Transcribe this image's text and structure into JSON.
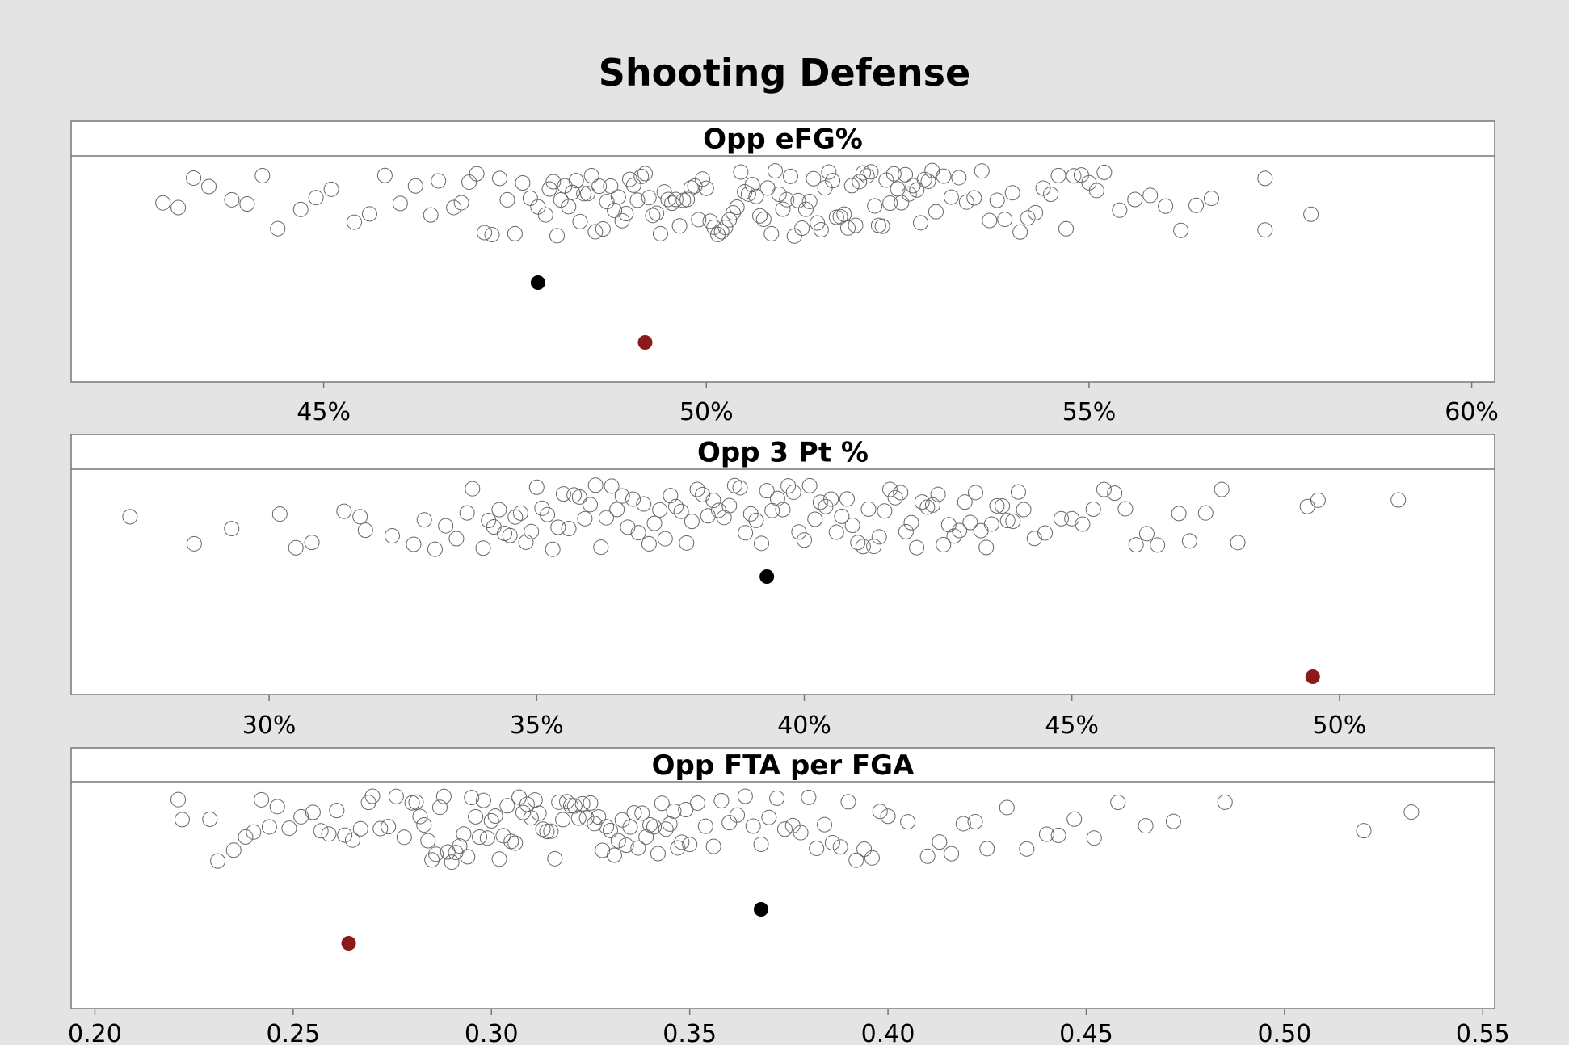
{
  "chart_data": {
    "type": "scatter",
    "title": "Shooting Defense",
    "colors": {
      "background": "#e4e4e4",
      "plot_background": "#ffffff",
      "point_outline": "#666666",
      "highlight_black": "#000000",
      "highlight_red": "#8b1a1a"
    },
    "panels": [
      {
        "title": "Opp eFG%",
        "tick_labels": [
          "45%",
          "50%",
          "55%",
          "60%"
        ],
        "ticks": [
          45,
          50,
          55,
          60
        ],
        "xlim": [
          41.7,
          60.3
        ],
        "highlight_black": 47.8,
        "highlight_red": 49.2,
        "values": [
          42.9,
          43.1,
          43.3,
          43.5,
          43.8,
          44.0,
          44.2,
          44.4,
          44.7,
          44.9,
          45.1,
          45.4,
          45.6,
          45.8,
          46.0,
          46.2,
          46.4,
          46.5,
          46.7,
          46.8,
          46.9,
          47.0,
          47.1,
          47.2,
          47.3,
          47.4,
          47.5,
          47.6,
          47.7,
          47.8,
          47.9,
          47.95,
          48.0,
          48.05,
          48.1,
          48.15,
          48.2,
          48.25,
          48.3,
          48.35,
          48.4,
          48.45,
          48.5,
          48.55,
          48.6,
          48.65,
          48.7,
          48.75,
          48.8,
          48.85,
          48.9,
          48.95,
          49.0,
          49.05,
          49.1,
          49.15,
          49.2,
          49.25,
          49.3,
          49.35,
          49.4,
          49.45,
          49.5,
          49.55,
          49.6,
          49.65,
          49.7,
          49.75,
          49.8,
          49.85,
          49.9,
          49.95,
          50.0,
          50.05,
          50.1,
          50.15,
          50.2,
          50.25,
          50.3,
          50.35,
          50.4,
          50.45,
          50.5,
          50.55,
          50.6,
          50.65,
          50.7,
          50.75,
          50.8,
          50.85,
          50.9,
          50.95,
          51.0,
          51.05,
          51.1,
          51.15,
          51.2,
          51.25,
          51.3,
          51.35,
          51.4,
          51.45,
          51.5,
          51.55,
          51.6,
          51.65,
          51.7,
          51.75,
          51.8,
          51.85,
          51.9,
          51.95,
          52.0,
          52.05,
          52.1,
          52.15,
          52.2,
          52.25,
          52.3,
          52.35,
          52.4,
          52.45,
          52.5,
          52.55,
          52.6,
          52.65,
          52.7,
          52.75,
          52.8,
          52.85,
          52.9,
          52.95,
          53.0,
          53.1,
          53.2,
          53.3,
          53.4,
          53.5,
          53.6,
          53.7,
          53.8,
          53.9,
          54.0,
          54.1,
          54.2,
          54.3,
          54.4,
          54.5,
          54.6,
          54.7,
          54.8,
          54.9,
          55.0,
          55.1,
          55.2,
          55.4,
          55.6,
          55.8,
          56.0,
          56.2,
          56.4,
          56.6,
          57.3,
          57.3,
          57.9
        ]
      },
      {
        "title": "Opp 3 Pt %",
        "tick_labels": [
          "30%",
          "35%",
          "40%",
          "45%",
          "50%"
        ],
        "ticks": [
          30,
          35,
          40,
          45,
          50
        ],
        "xlim": [
          26.3,
          52.9
        ],
        "highlight_black": 39.3,
        "highlight_red": 49.5,
        "values": [
          27.4,
          28.6,
          29.3,
          30.2,
          30.5,
          30.8,
          31.4,
          31.7,
          31.8,
          32.3,
          32.7,
          32.9,
          33.1,
          33.3,
          33.5,
          33.7,
          33.8,
          34.0,
          34.1,
          34.2,
          34.3,
          34.4,
          34.5,
          34.6,
          34.7,
          34.8,
          34.9,
          35.0,
          35.1,
          35.2,
          35.3,
          35.4,
          35.5,
          35.6,
          35.7,
          35.8,
          35.9,
          36.0,
          36.1,
          36.2,
          36.3,
          36.4,
          36.5,
          36.6,
          36.7,
          36.8,
          36.9,
          37.0,
          37.1,
          37.2,
          37.3,
          37.4,
          37.5,
          37.6,
          37.7,
          37.8,
          37.9,
          38.0,
          38.1,
          38.2,
          38.3,
          38.4,
          38.5,
          38.6,
          38.7,
          38.8,
          38.9,
          39.0,
          39.1,
          39.2,
          39.3,
          39.4,
          39.5,
          39.6,
          39.7,
          39.8,
          39.9,
          40.0,
          40.1,
          40.2,
          40.3,
          40.4,
          40.5,
          40.6,
          40.7,
          40.8,
          40.9,
          41.0,
          41.1,
          41.2,
          41.3,
          41.4,
          41.5,
          41.6,
          41.7,
          41.8,
          41.9,
          42.0,
          42.1,
          42.2,
          42.3,
          42.4,
          42.5,
          42.6,
          42.7,
          42.8,
          42.9,
          43.0,
          43.1,
          43.2,
          43.3,
          43.4,
          43.5,
          43.6,
          43.7,
          43.8,
          43.9,
          44.0,
          44.1,
          44.3,
          44.5,
          44.8,
          45.0,
          45.2,
          45.4,
          45.6,
          45.8,
          46.0,
          46.2,
          46.4,
          46.6,
          47.0,
          47.2,
          47.5,
          47.8,
          48.1,
          49.4,
          49.6,
          51.1
        ]
      },
      {
        "title": "Opp FTA per FGA",
        "tick_labels": [
          "0.20",
          "0.25",
          "0.30",
          "0.35",
          "0.40",
          "0.45",
          "0.50",
          "0.55"
        ],
        "ticks": [
          0.2,
          0.25,
          0.3,
          0.35,
          0.4,
          0.45,
          0.5,
          0.55
        ],
        "xlim": [
          0.194,
          0.553
        ],
        "highlight_black": 0.368,
        "highlight_red": 0.264,
        "values": [
          0.221,
          0.222,
          0.229,
          0.231,
          0.235,
          0.238,
          0.24,
          0.242,
          0.244,
          0.246,
          0.249,
          0.252,
          0.255,
          0.257,
          0.259,
          0.261,
          0.263,
          0.265,
          0.267,
          0.269,
          0.27,
          0.272,
          0.274,
          0.276,
          0.278,
          0.28,
          0.281,
          0.282,
          0.283,
          0.284,
          0.285,
          0.286,
          0.287,
          0.288,
          0.289,
          0.29,
          0.291,
          0.292,
          0.293,
          0.294,
          0.295,
          0.296,
          0.297,
          0.298,
          0.299,
          0.3,
          0.301,
          0.302,
          0.303,
          0.304,
          0.305,
          0.306,
          0.307,
          0.308,
          0.309,
          0.31,
          0.311,
          0.312,
          0.313,
          0.314,
          0.315,
          0.316,
          0.317,
          0.318,
          0.319,
          0.32,
          0.321,
          0.322,
          0.323,
          0.324,
          0.325,
          0.326,
          0.327,
          0.328,
          0.329,
          0.33,
          0.331,
          0.332,
          0.333,
          0.334,
          0.335,
          0.336,
          0.337,
          0.338,
          0.339,
          0.34,
          0.341,
          0.342,
          0.343,
          0.344,
          0.345,
          0.346,
          0.347,
          0.348,
          0.349,
          0.35,
          0.352,
          0.354,
          0.356,
          0.358,
          0.36,
          0.362,
          0.364,
          0.366,
          0.368,
          0.37,
          0.372,
          0.374,
          0.376,
          0.378,
          0.38,
          0.382,
          0.384,
          0.386,
          0.388,
          0.39,
          0.392,
          0.394,
          0.396,
          0.398,
          0.4,
          0.405,
          0.41,
          0.413,
          0.416,
          0.419,
          0.422,
          0.425,
          0.43,
          0.435,
          0.44,
          0.443,
          0.447,
          0.452,
          0.458,
          0.465,
          0.472,
          0.485,
          0.52,
          0.532
        ]
      }
    ]
  }
}
